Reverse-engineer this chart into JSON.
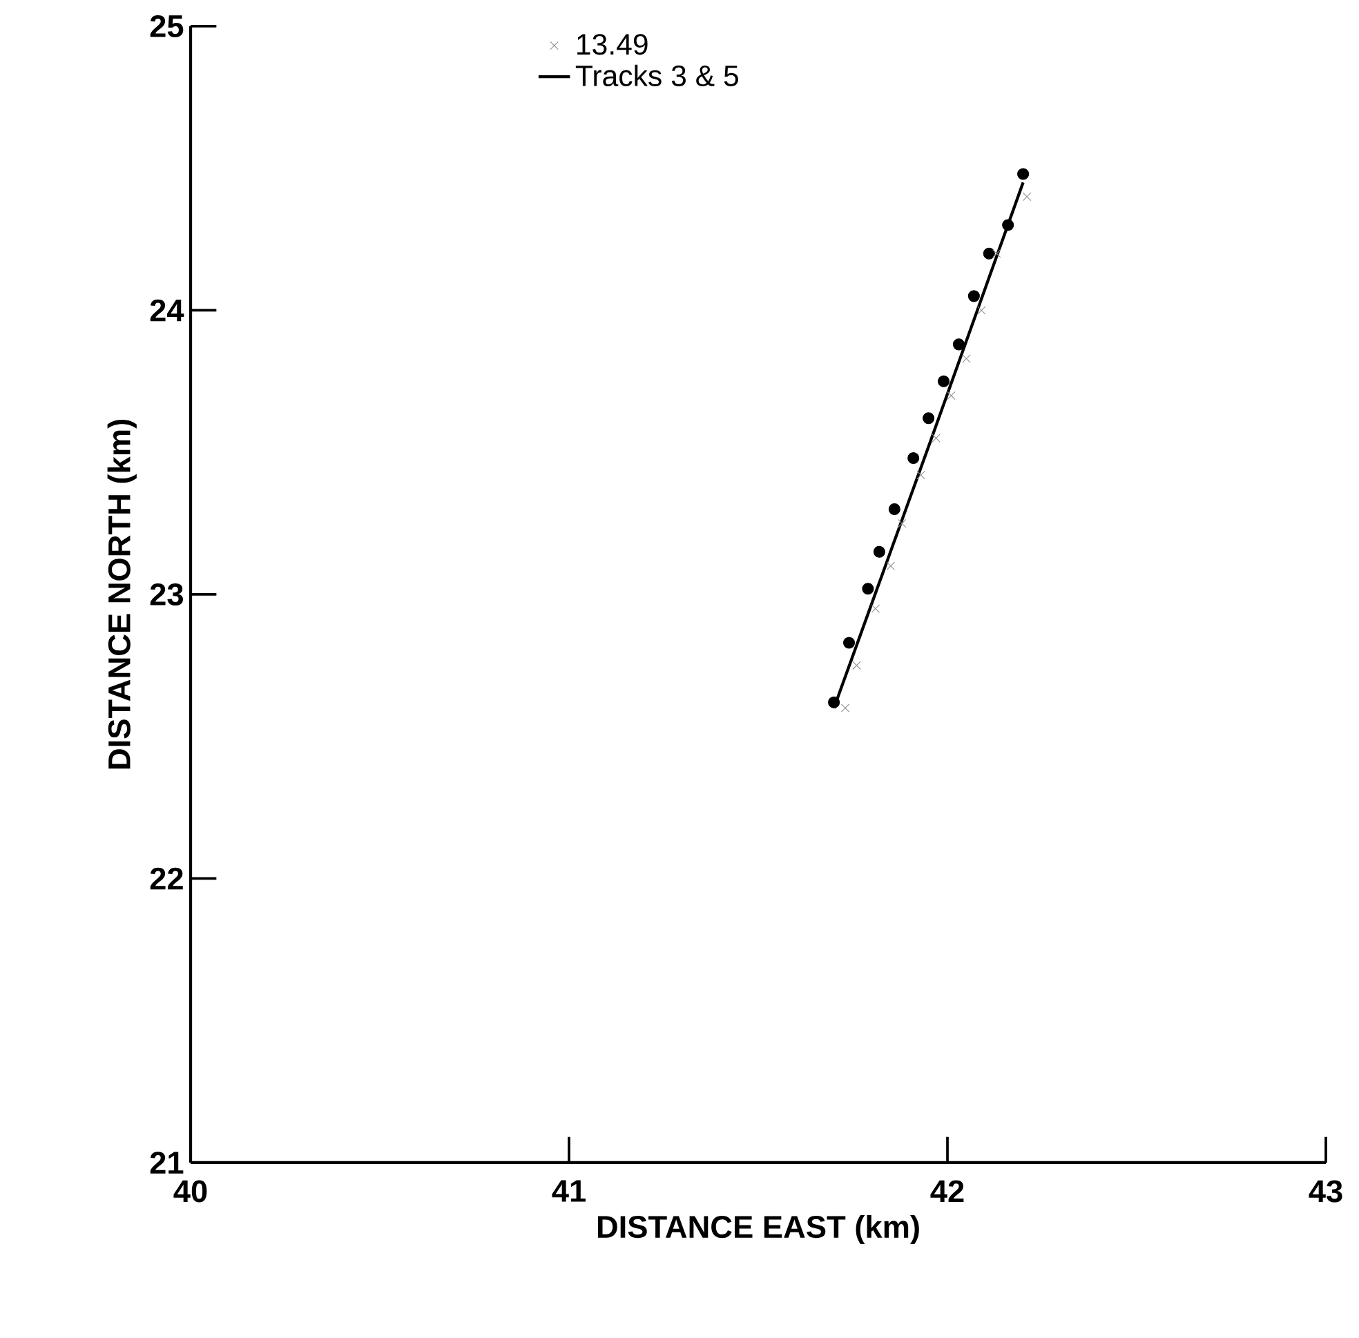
{
  "chart_data": {
    "type": "scatter",
    "xlabel": "DISTANCE EAST (km)",
    "ylabel": "DISTANCE NORTH (km)",
    "xlim": [
      40,
      43
    ],
    "ylim": [
      21,
      25
    ],
    "xticks": [
      40,
      41,
      42,
      43
    ],
    "yticks": [
      21,
      22,
      23,
      24,
      25
    ],
    "legend": "top left",
    "grid": false,
    "series": [
      {
        "type": "scatter",
        "marker": "circle",
        "color": "#000000",
        "x": [
          41.7,
          41.74,
          41.79,
          41.82,
          41.86,
          41.91,
          41.95,
          41.99,
          42.03,
          42.07,
          42.11,
          42.16,
          42.2
        ],
        "values": [
          22.62,
          22.83,
          23.02,
          23.15,
          23.3,
          23.48,
          23.62,
          23.75,
          23.88,
          24.05,
          24.2,
          24.3,
          24.48
        ]
      },
      {
        "type": "scatter",
        "name": "13.49",
        "marker": "cross",
        "color": "#909090",
        "x": [
          41.73,
          41.76,
          41.81,
          41.85,
          41.88,
          41.93,
          41.97,
          42.01,
          42.05,
          42.09,
          42.13,
          42.21
        ],
        "values": [
          22.6,
          22.75,
          22.95,
          23.1,
          23.25,
          23.42,
          23.55,
          23.7,
          23.83,
          24.0,
          24.2,
          24.4
        ]
      },
      {
        "type": "line",
        "name": "Tracks 3 & 5",
        "color": "#000000",
        "line_style": "solid",
        "marker": "none",
        "x": [
          41.7,
          41.95,
          42.2
        ],
        "values": [
          22.6,
          23.52,
          24.45
        ]
      }
    ]
  }
}
